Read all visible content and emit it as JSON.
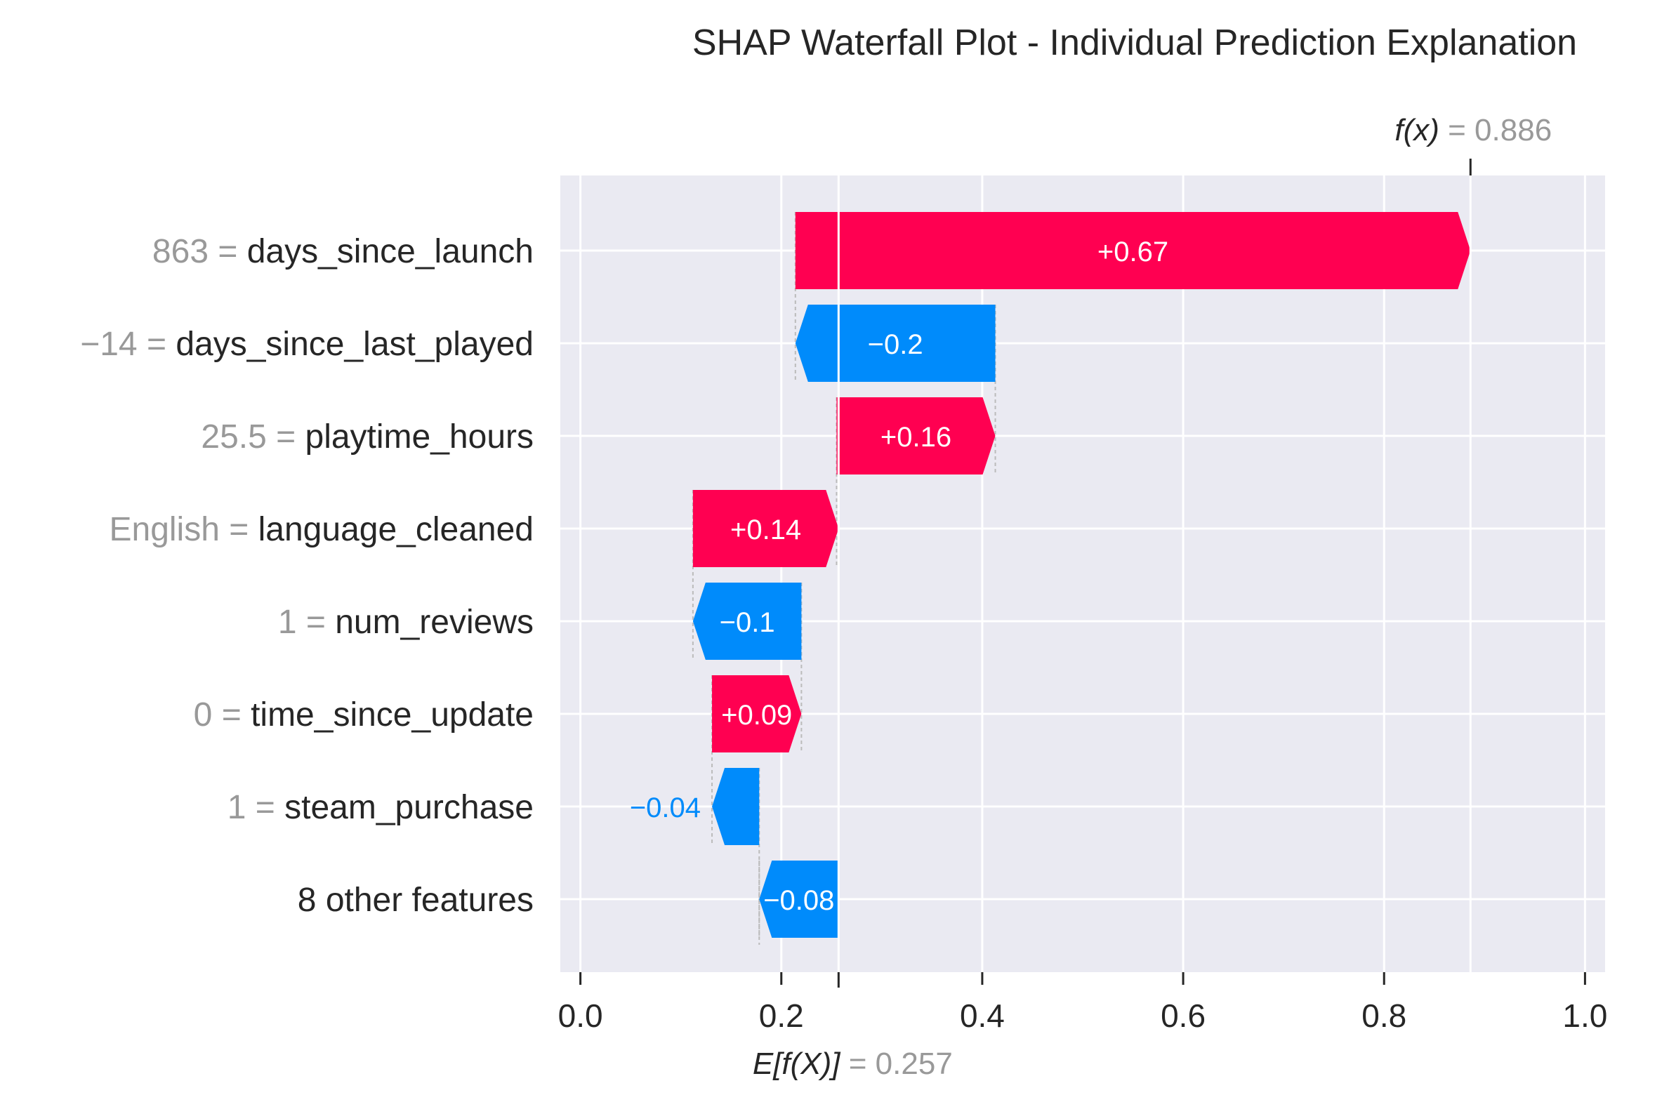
{
  "chart_data": {
    "type": "waterfall",
    "title": "SHAP Waterfall Plot - Individual Prediction Explanation",
    "xlim": [
      -0.02,
      1.02
    ],
    "x_ticks": [
      0.0,
      0.2,
      0.4,
      0.6,
      0.8,
      1.0
    ],
    "x_tick_labels": [
      "0.0",
      "0.2",
      "0.4",
      "0.6",
      "0.8",
      "1.0"
    ],
    "grid": true,
    "base_value": 0.257,
    "base_label": {
      "prefix": "E[",
      "expr": "f(X)",
      "suffix": "]",
      "equals": " = ",
      "value_text": "0.257"
    },
    "fx_value": 0.886,
    "fx_label": {
      "expr": "f(x)",
      "equals": " = ",
      "value_text": "0.886"
    },
    "colors": {
      "positive": "#ff0051",
      "negative": "#008bfb",
      "background": "#eaeaf2",
      "grid": "#ffffff",
      "feature_value": "#999999",
      "feature_name": "#262626",
      "connector": "#bbbbbb"
    },
    "features": [
      {
        "value": "863",
        "name": "days_since_launch",
        "label": "863 = days_since_launch",
        "start": 0.214,
        "end": 0.886,
        "shap": 0.67,
        "shap_label": "+0.67",
        "label_outside": false
      },
      {
        "value": "−14",
        "name": "days_since_last_played",
        "label": "−14 = days_since_last_played",
        "start": 0.413,
        "end": 0.214,
        "shap": -0.2,
        "shap_label": "−0.2",
        "label_outside": false
      },
      {
        "value": "25.5",
        "name": "playtime_hours",
        "label": "25.5 = playtime_hours",
        "start": 0.255,
        "end": 0.413,
        "shap": 0.16,
        "shap_label": "+0.16",
        "label_outside": false
      },
      {
        "value": "English",
        "name": "language_cleaned",
        "label": "English = language_cleaned",
        "start": 0.112,
        "end": 0.257,
        "shap": 0.14,
        "shap_label": "+0.14",
        "label_outside": false
      },
      {
        "value": "1",
        "name": "num_reviews",
        "label": "1 = num_reviews",
        "start": 0.22,
        "end": 0.112,
        "shap": -0.1,
        "shap_label": "−0.1",
        "label_outside": false
      },
      {
        "value": "0",
        "name": "time_since_update",
        "label": "0 = time_since_update",
        "start": 0.131,
        "end": 0.22,
        "shap": 0.09,
        "shap_label": "+0.09",
        "label_outside": false
      },
      {
        "value": "1",
        "name": "steam_purchase",
        "label": "1 = steam_purchase",
        "start": 0.178,
        "end": 0.131,
        "shap": -0.04,
        "shap_label": "−0.04",
        "label_outside": true
      },
      {
        "value": "",
        "name": "8 other features",
        "label": "8 other features",
        "start": 0.257,
        "end": 0.178,
        "shap": -0.08,
        "shap_label": "−0.08",
        "label_outside": false
      }
    ]
  }
}
